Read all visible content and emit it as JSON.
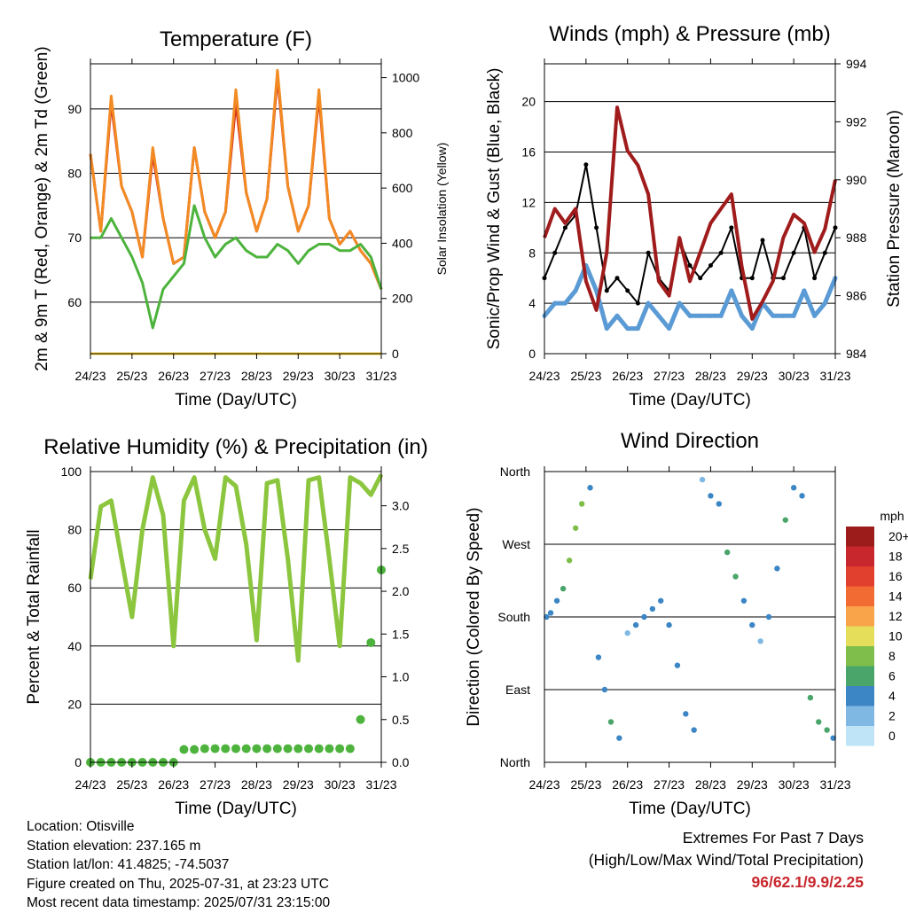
{
  "chart_data": [
    {
      "type": "line",
      "title": "Temperature (F)",
      "xlabel": "Time (Day/UTC)",
      "ylabel": "2m & 9m T (Red, Orange) & 2m Td (Green)",
      "ylabel_right": "Solar Insolation (Yellow)",
      "xticks": [
        "24/23",
        "25/23",
        "26/23",
        "27/23",
        "28/23",
        "29/23",
        "30/23",
        "31/23"
      ],
      "ylim": [
        52,
        97
      ],
      "yticks": [
        60,
        70,
        80,
        90
      ],
      "ylim_right": [
        0,
        1050
      ],
      "yticks_right": [
        0,
        200,
        400,
        600,
        800,
        1000
      ],
      "grid": true,
      "x_days": [
        0,
        0.25,
        0.5,
        0.75,
        1,
        1.25,
        1.5,
        1.75,
        2,
        2.25,
        2.5,
        2.75,
        3,
        3.25,
        3.5,
        3.75,
        4,
        4.25,
        4.5,
        4.75,
        5,
        5.25,
        5.5,
        5.75,
        6,
        6.25,
        6.5,
        6.75,
        7
      ],
      "series": [
        {
          "color": "#d62a1e",
          "values": [
            83,
            71,
            91,
            78,
            74,
            67,
            83,
            73,
            66,
            67,
            84,
            74,
            70,
            74,
            91,
            77,
            71,
            76,
            95,
            78,
            71,
            75,
            92,
            73,
            69,
            71,
            68,
            66,
            62
          ]
        },
        {
          "color": "#f28b24",
          "values": [
            83,
            71,
            92,
            78,
            74,
            67,
            84,
            73,
            66,
            67,
            84,
            74,
            70,
            74,
            93,
            77,
            71,
            76,
            96,
            78,
            71,
            75,
            93,
            73,
            69,
            71,
            68,
            66,
            62
          ]
        },
        {
          "color": "#4db33d",
          "values": [
            70,
            70,
            73,
            70,
            67,
            63,
            56,
            62,
            64,
            66,
            75,
            70,
            67,
            69,
            70,
            68,
            67,
            67,
            69,
            68,
            66,
            68,
            69,
            69,
            68,
            68,
            69,
            67,
            62
          ]
        },
        {
          "color": "#ffd33a",
          "axis": "right",
          "values": [
            0,
            0,
            0,
            0,
            0,
            0,
            0,
            0,
            0,
            0,
            0,
            0,
            0,
            0,
            0,
            0,
            0,
            0,
            0,
            0,
            0,
            0,
            0,
            0,
            0,
            0,
            0,
            0,
            0
          ]
        }
      ]
    },
    {
      "type": "scatter",
      "title": "Winds (mph) & Pressure (mb)",
      "xlabel": "Time (Day/UTC)",
      "ylabel": "Sonic/Prop Wind & Gust (Blue, Black)",
      "ylabel_right": "Station Pressure (Maroon)",
      "xticks": [
        "24/23",
        "25/23",
        "26/23",
        "27/23",
        "28/23",
        "29/23",
        "30/23",
        "31/23"
      ],
      "ylim": [
        0,
        23
      ],
      "yticks": [
        0,
        4,
        8,
        12,
        16,
        20
      ],
      "ylim_right": [
        984,
        994
      ],
      "yticks_right": [
        984,
        986,
        988,
        990,
        992,
        994
      ],
      "grid": true,
      "x_days": [
        0,
        0.25,
        0.5,
        0.75,
        1,
        1.25,
        1.5,
        1.75,
        2,
        2.25,
        2.5,
        2.75,
        3,
        3.25,
        3.5,
        3.75,
        4,
        4.25,
        4.5,
        4.75,
        5,
        5.25,
        5.5,
        5.75,
        6,
        6.25,
        6.5,
        6.75,
        7
      ],
      "series": [
        {
          "color": "#000000",
          "values": [
            6,
            8,
            10,
            11,
            15,
            10,
            5,
            6,
            5,
            4,
            8,
            6,
            5,
            9,
            7,
            6,
            7,
            8,
            10,
            6,
            6,
            9,
            6,
            6,
            8,
            10,
            6,
            8,
            10
          ]
        },
        {
          "color": "#5b9bd5",
          "values": [
            3,
            4,
            4,
            5,
            7,
            5,
            2,
            3,
            2,
            2,
            4,
            3,
            2,
            4,
            3,
            3,
            3,
            3,
            5,
            3,
            2,
            4,
            3,
            3,
            3,
            5,
            3,
            4,
            6
          ]
        },
        {
          "color": "#a01c1c",
          "axis": "right",
          "values": [
            988,
            989,
            988.5,
            989,
            986.5,
            985.5,
            987.5,
            992.5,
            991,
            990.5,
            989.5,
            986.5,
            986,
            988,
            986.5,
            987.5,
            988.5,
            989,
            989.5,
            987,
            985.2,
            985.8,
            986.5,
            988,
            988.8,
            988.5,
            987.5,
            988.3,
            990
          ]
        }
      ]
    },
    {
      "type": "line",
      "title": "Relative Humidity (%) & Precipitation (in)",
      "xlabel": "Time (Day/UTC)",
      "ylabel": "Percent & Total Rainfall",
      "xticks": [
        "24/23",
        "25/23",
        "26/23",
        "27/23",
        "28/23",
        "29/23",
        "30/23",
        "31/23"
      ],
      "ylim": [
        0,
        100
      ],
      "yticks": [
        0,
        20,
        40,
        60,
        80,
        100
      ],
      "ylim_right": [
        0,
        3.4
      ],
      "yticks_right": [
        "0.0",
        "0.5",
        "1.0",
        "1.5",
        "2.0",
        "2.5",
        "3.0"
      ],
      "grid": true,
      "x_days": [
        0,
        0.25,
        0.5,
        0.75,
        1,
        1.25,
        1.5,
        1.75,
        2,
        2.25,
        2.5,
        2.75,
        3,
        3.25,
        3.5,
        3.75,
        4,
        4.25,
        4.5,
        4.75,
        5,
        5.25,
        5.5,
        5.75,
        6,
        6.25,
        6.5,
        6.75,
        7
      ],
      "series": [
        {
          "color": "#8cc63f",
          "values": [
            63,
            88,
            90,
            70,
            50,
            80,
            98,
            85,
            40,
            90,
            98,
            80,
            70,
            98,
            95,
            75,
            42,
            96,
            97,
            70,
            35,
            97,
            98,
            70,
            40,
            98,
            96,
            92,
            99
          ]
        },
        {
          "color": "#4db33d",
          "axis": "right",
          "values": [
            0,
            0,
            0,
            0,
            0,
            0,
            0,
            0,
            0,
            0.15,
            0.15,
            0.16,
            0.16,
            0.16,
            0.16,
            0.16,
            0.16,
            0.16,
            0.16,
            0.16,
            0.16,
            0.16,
            0.16,
            0.16,
            0.16,
            0.16,
            0.5,
            1.4,
            2.25
          ]
        }
      ]
    },
    {
      "type": "scatter",
      "title": "Wind Direction",
      "xlabel": "Time (Day/UTC)",
      "ylabel": "Direction (Colored By Speed)",
      "xticks": [
        "24/23",
        "25/23",
        "26/23",
        "27/23",
        "28/23",
        "29/23",
        "30/23",
        "31/23"
      ],
      "yticks": [
        "North",
        "East",
        "South",
        "West",
        "North"
      ],
      "ylim": [
        0,
        360
      ],
      "grid": true,
      "x_days": [
        0.05,
        0.15,
        0.3,
        0.45,
        0.6,
        0.75,
        0.9,
        1.1,
        1.3,
        1.45,
        1.6,
        1.8,
        2.0,
        2.2,
        2.4,
        2.6,
        2.8,
        3.0,
        3.2,
        3.4,
        3.6,
        3.8,
        4.0,
        4.2,
        4.4,
        4.6,
        4.8,
        5.0,
        5.2,
        5.4,
        5.6,
        5.8,
        6.0,
        6.2,
        6.4,
        6.6,
        6.8,
        6.95
      ],
      "directions": [
        180,
        185,
        200,
        215,
        250,
        290,
        320,
        340,
        130,
        90,
        50,
        30,
        160,
        170,
        180,
        190,
        200,
        170,
        120,
        60,
        40,
        350,
        330,
        320,
        260,
        230,
        200,
        170,
        150,
        180,
        240,
        300,
        340,
        330,
        80,
        50,
        40,
        30
      ],
      "speeds": [
        3,
        4,
        4,
        5,
        7,
        8,
        7,
        4,
        3,
        4,
        5,
        3,
        2,
        3,
        3,
        4,
        4,
        3,
        3,
        4,
        3,
        2,
        3,
        4,
        5,
        5,
        4,
        3,
        2,
        3,
        4,
        5,
        3,
        4,
        5,
        6,
        5,
        4
      ],
      "legend": {
        "title": "mph",
        "labels": [
          "20+",
          "18",
          "16",
          "14",
          "12",
          "10",
          "8",
          "6",
          "4",
          "2",
          "0"
        ],
        "colors": [
          "#9c1b1b",
          "#c8272d",
          "#e2402f",
          "#f26b33",
          "#f9a34a",
          "#e4de5a",
          "#7fbe4a",
          "#4aa56a",
          "#3c86c5",
          "#7fb9e3",
          "#bfe4f7"
        ]
      }
    }
  ],
  "info": {
    "location": "Location: Otisville",
    "elevation": "Station elevation: 237.165 m",
    "latlon": "Station lat/lon: 41.4825; -74.5037",
    "created": "Figure created on Thu, 2025-07-31, at 23:23 UTC",
    "recent": "Most recent data timestamp: 2025/07/31 23:15:00"
  },
  "extremes": {
    "line1": "Extremes For Past 7 Days",
    "line2": "(High/Low/Max Wind/Total Precipitation)",
    "values": "96/62.1/9.9/2.25"
  }
}
